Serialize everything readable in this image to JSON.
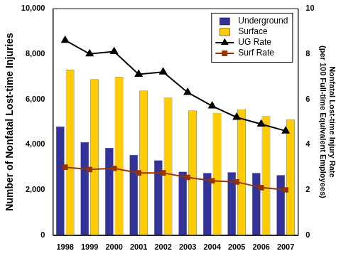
{
  "chart_data": {
    "type": "bar",
    "ylabel": "Number of Nonfatal Lost-time Injuries",
    "y2label": [
      "Nonfatal Lost-time Injury Rate",
      "(per 100 Full-time Equivalent Employees)"
    ],
    "categories": [
      "1998",
      "1999",
      "2000",
      "2001",
      "2002",
      "2003",
      "2004",
      "2005",
      "2006",
      "2007"
    ],
    "series": [
      {
        "name": "Underground",
        "type": "bar",
        "color": "#333399",
        "values": [
          4800,
          4100,
          3850,
          3550,
          3300,
          2800,
          2750,
          2780,
          2750,
          2650
        ]
      },
      {
        "name": "Surface",
        "type": "bar",
        "color": "#ffcc00",
        "values": [
          7300,
          6880,
          6980,
          6380,
          6060,
          5500,
          5400,
          5550,
          5250,
          5100
        ]
      },
      {
        "name": "UG Rate",
        "type": "line",
        "axis": "y2",
        "color": "#000000",
        "marker": "triangle",
        "line_style": "solid",
        "values": [
          8.6,
          8.0,
          8.1,
          7.1,
          7.2,
          6.3,
          5.7,
          5.2,
          4.9,
          4.6
        ]
      },
      {
        "name": "Surf Rate",
        "type": "line",
        "axis": "y2",
        "color": "#993300",
        "marker": "square",
        "line_style": "solid",
        "values": [
          3.0,
          2.9,
          2.95,
          2.75,
          2.75,
          2.55,
          2.4,
          2.35,
          2.1,
          2.0
        ]
      }
    ],
    "ylim": [
      0,
      10000
    ],
    "yticks": [
      0,
      {
        "value": 2000,
        "label": "2,000"
      },
      {
        "value": 4000,
        "label": "4,000"
      },
      {
        "value": 6000,
        "label": "6,000"
      },
      {
        "value": 8000,
        "label": "8,000"
      },
      {
        "value": 10000,
        "label": "10,000"
      }
    ],
    "y2lim": [
      0,
      10
    ],
    "y2ticks": [
      0,
      2,
      4,
      6,
      8,
      10
    ],
    "grid": false,
    "legend": "upper right"
  }
}
